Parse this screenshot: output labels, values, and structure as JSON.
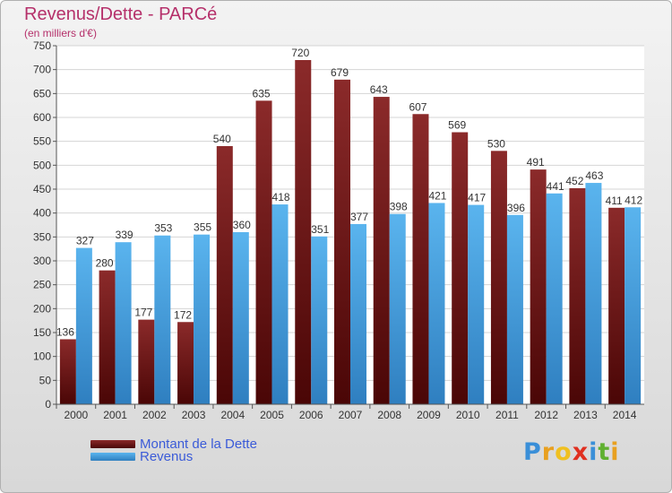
{
  "chart_data": {
    "type": "bar",
    "title": "Revenus/Dette - PARCé",
    "subtitle": "(en milliers d'€)",
    "categories": [
      "2000",
      "2001",
      "2002",
      "2003",
      "2004",
      "2005",
      "2006",
      "2007",
      "2008",
      "2009",
      "2010",
      "2011",
      "2012",
      "2013",
      "2014"
    ],
    "series": [
      {
        "name": "Montant de la Dette",
        "color": "#7a1a1a",
        "values": [
          136,
          280,
          177,
          172,
          540,
          635,
          720,
          679,
          643,
          607,
          569,
          530,
          491,
          452,
          411
        ]
      },
      {
        "name": "Revenus",
        "color": "#4aa6e4",
        "values": [
          327,
          339,
          353,
          355,
          360,
          418,
          351,
          377,
          398,
          421,
          417,
          396,
          441,
          463,
          412
        ]
      }
    ],
    "ylim": [
      0,
      750
    ],
    "yticks": [
      0,
      50,
      100,
      150,
      200,
      250,
      300,
      350,
      400,
      450,
      500,
      550,
      600,
      650,
      700,
      750
    ],
    "grid": true,
    "legend_position": "bottom-left"
  },
  "logo": {
    "letters": [
      "P",
      "r",
      "o",
      "x",
      "i",
      "t",
      "i"
    ],
    "colors": [
      "#3a8fd8",
      "#e8a020",
      "#f0c020",
      "#e03020",
      "#3a8fd8",
      "#60b030",
      "#e8a020"
    ]
  }
}
